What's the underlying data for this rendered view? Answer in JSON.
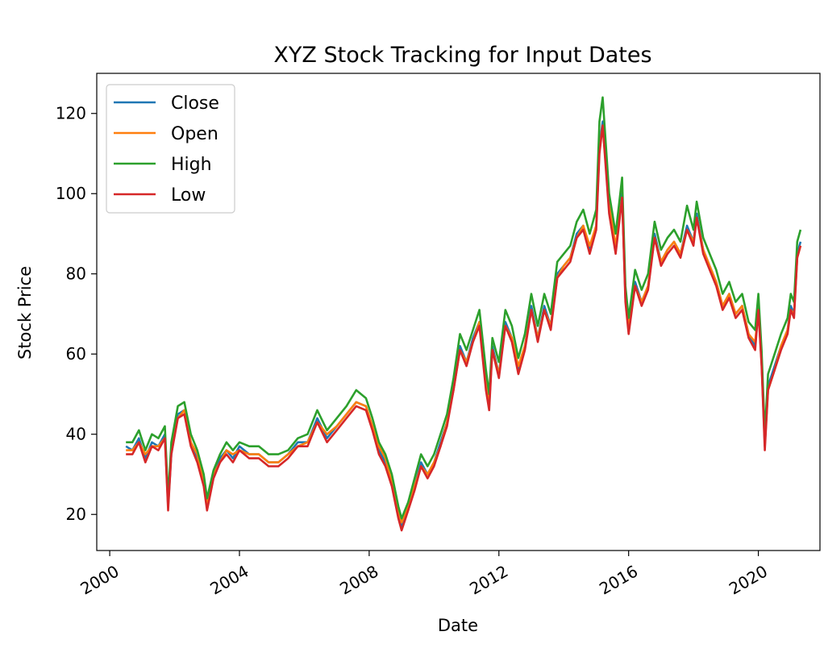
{
  "chart_data": {
    "type": "line",
    "title": "XYZ Stock Tracking for Input Dates",
    "xlabel": "Date",
    "ylabel": "Stock Price",
    "xlim": [
      1999.6,
      2021.9
    ],
    "ylim": [
      11,
      130
    ],
    "x_ticks": [
      2000,
      2004,
      2008,
      2012,
      2016,
      2020
    ],
    "x_tick_labels": [
      "2000",
      "2004",
      "2008",
      "2012",
      "2016",
      "2020"
    ],
    "y_ticks": [
      20,
      40,
      60,
      80,
      100,
      120
    ],
    "y_tick_labels": [
      "20",
      "40",
      "60",
      "80",
      "100",
      "120"
    ],
    "grid": false,
    "legend_position": "top-left",
    "x": [
      2000.5,
      2000.7,
      2000.9,
      2001.1,
      2001.3,
      2001.5,
      2001.7,
      2001.8,
      2001.9,
      2002.1,
      2002.3,
      2002.5,
      2002.7,
      2002.9,
      2003.0,
      2003.2,
      2003.4,
      2003.6,
      2003.8,
      2004.0,
      2004.3,
      2004.6,
      2004.9,
      2005.2,
      2005.5,
      2005.8,
      2006.1,
      2006.4,
      2006.7,
      2007.0,
      2007.3,
      2007.6,
      2007.9,
      2008.1,
      2008.3,
      2008.5,
      2008.7,
      2008.9,
      2009.0,
      2009.2,
      2009.4,
      2009.6,
      2009.8,
      2010.0,
      2010.2,
      2010.4,
      2010.6,
      2010.8,
      2011.0,
      2011.2,
      2011.4,
      2011.6,
      2011.7,
      2011.8,
      2012.0,
      2012.2,
      2012.4,
      2012.6,
      2012.8,
      2013.0,
      2013.2,
      2013.4,
      2013.6,
      2013.8,
      2014.0,
      2014.2,
      2014.4,
      2014.6,
      2014.8,
      2015.0,
      2015.1,
      2015.2,
      2015.4,
      2015.6,
      2015.8,
      2015.9,
      2016.0,
      2016.2,
      2016.4,
      2016.6,
      2016.8,
      2017.0,
      2017.2,
      2017.4,
      2017.6,
      2017.8,
      2018.0,
      2018.1,
      2018.3,
      2018.5,
      2018.7,
      2018.9,
      2019.1,
      2019.3,
      2019.5,
      2019.7,
      2019.9,
      2020.0,
      2020.1,
      2020.2,
      2020.3,
      2020.5,
      2020.7,
      2020.9,
      2021.0,
      2021.1,
      2021.2,
      2021.3
    ],
    "series": [
      {
        "name": "Close",
        "color": "#1f77b4",
        "values": [
          37,
          36,
          39,
          34,
          38,
          37,
          40,
          22,
          35,
          45,
          46,
          38,
          34,
          28,
          22,
          30,
          34,
          36,
          34,
          37,
          35,
          35,
          33,
          33,
          35,
          38,
          38,
          44,
          39,
          42,
          45,
          48,
          47,
          42,
          36,
          33,
          28,
          20,
          17,
          22,
          27,
          33,
          30,
          33,
          38,
          43,
          52,
          62,
          58,
          64,
          68,
          52,
          47,
          62,
          55,
          68,
          64,
          56,
          62,
          72,
          64,
          72,
          67,
          80,
          82,
          84,
          90,
          92,
          86,
          92,
          112,
          118,
          96,
          86,
          100,
          74,
          66,
          78,
          73,
          77,
          90,
          83,
          86,
          88,
          85,
          92,
          88,
          95,
          86,
          82,
          78,
          72,
          75,
          70,
          72,
          65,
          62,
          72,
          58,
          37,
          52,
          57,
          62,
          66,
          72,
          70,
          85,
          88
        ]
      },
      {
        "name": "Open",
        "color": "#ff7f0e",
        "values": [
          36,
          36,
          38,
          35,
          37,
          37,
          39,
          23,
          36,
          44,
          46,
          38,
          35,
          28,
          23,
          30,
          33,
          36,
          35,
          36,
          35,
          35,
          33,
          33,
          35,
          37,
          38,
          43,
          40,
          42,
          45,
          48,
          47,
          42,
          37,
          34,
          28,
          21,
          18,
          22,
          27,
          32,
          30,
          33,
          37,
          43,
          51,
          61,
          58,
          63,
          68,
          53,
          48,
          61,
          55,
          67,
          64,
          57,
          62,
          71,
          64,
          71,
          67,
          79,
          82,
          84,
          89,
          92,
          87,
          92,
          111,
          117,
          97,
          87,
          99,
          75,
          67,
          77,
          73,
          77,
          89,
          83,
          86,
          88,
          85,
          91,
          88,
          94,
          86,
          82,
          78,
          72,
          75,
          70,
          72,
          65,
          63,
          71,
          58,
          38,
          51,
          56,
          62,
          66,
          71,
          70,
          84,
          87
        ]
      },
      {
        "name": "High",
        "color": "#2ca02c",
        "values": [
          38,
          38,
          41,
          36,
          40,
          39,
          42,
          24,
          38,
          47,
          48,
          40,
          36,
          30,
          24,
          31,
          35,
          38,
          36,
          38,
          37,
          37,
          35,
          35,
          36,
          39,
          40,
          46,
          41,
          44,
          47,
          51,
          49,
          44,
          38,
          35,
          30,
          22,
          19,
          23,
          29,
          35,
          32,
          35,
          40,
          45,
          54,
          65,
          61,
          66,
          71,
          56,
          50,
          64,
          58,
          71,
          67,
          59,
          65,
          75,
          67,
          75,
          70,
          83,
          85,
          87,
          93,
          96,
          90,
          96,
          118,
          124,
          100,
          90,
          104,
          77,
          69,
          81,
          76,
          80,
          93,
          86,
          89,
          91,
          88,
          97,
          91,
          98,
          89,
          85,
          81,
          75,
          78,
          73,
          75,
          68,
          66,
          75,
          61,
          40,
          55,
          60,
          65,
          69,
          75,
          73,
          88,
          91
        ]
      },
      {
        "name": "Low",
        "color": "#d62728",
        "values": [
          35,
          35,
          38,
          33,
          37,
          36,
          39,
          21,
          35,
          44,
          45,
          37,
          33,
          27,
          21,
          29,
          33,
          35,
          33,
          36,
          34,
          34,
          32,
          32,
          34,
          37,
          37,
          43,
          38,
          41,
          44,
          47,
          46,
          41,
          35,
          32,
          27,
          19,
          16,
          21,
          26,
          32,
          29,
          32,
          37,
          42,
          51,
          61,
          57,
          63,
          67,
          51,
          46,
          61,
          54,
          67,
          63,
          55,
          61,
          71,
          63,
          71,
          66,
          79,
          81,
          83,
          89,
          91,
          85,
          91,
          110,
          117,
          95,
          85,
          99,
          73,
          65,
          77,
          72,
          76,
          89,
          82,
          85,
          87,
          84,
          91,
          87,
          94,
          85,
          81,
          77,
          71,
          74,
          69,
          71,
          64,
          61,
          71,
          57,
          36,
          51,
          56,
          61,
          65,
          71,
          69,
          84,
          87
        ]
      }
    ]
  }
}
